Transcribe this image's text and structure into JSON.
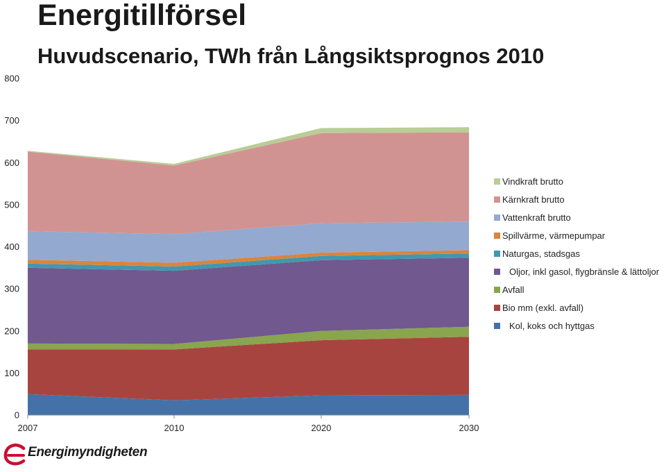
{
  "header": {
    "title": "Energitillförsel",
    "subtitle": "Huvudscenario, TWh från Långsiktsprognos 2010"
  },
  "logo": {
    "text": "Energimyndigheten"
  },
  "chart_data": {
    "type": "area",
    "stacked": true,
    "title": "Energitillförsel",
    "subtitle": "Huvudscenario, TWh från Långsiktsprognos 2010",
    "x": [
      2007,
      2010,
      2020,
      2030
    ],
    "x_labels": [
      "2007",
      "2010",
      "2020",
      "2030"
    ],
    "ylim": [
      0,
      800
    ],
    "y_ticks": [
      0,
      100,
      200,
      300,
      400,
      500,
      600,
      700,
      800
    ],
    "legend_position": "right",
    "series": [
      {
        "name": "Kol, koks och hyttgas",
        "color": "#4472a8",
        "values": [
          50,
          35,
          47,
          48
        ]
      },
      {
        "name": "Bio mm (exkl. avfall)",
        "color": "#a84440",
        "values": [
          106,
          121,
          131,
          138
        ]
      },
      {
        "name": "Avfall",
        "color": "#89a54e",
        "values": [
          14,
          13,
          22,
          24
        ]
      },
      {
        "name": "Oljor, inkl gasol, flygbränsle & lättoljor",
        "color": "#71588f",
        "values": [
          180,
          174,
          168,
          164
        ]
      },
      {
        "name": "Naturgas, stadsgas",
        "color": "#4198af",
        "values": [
          10,
          10,
          10,
          10
        ]
      },
      {
        "name": "Spillvärme, värmepumpar",
        "color": "#db843d",
        "values": [
          9,
          9,
          8,
          8
        ]
      },
      {
        "name": "Vattenkraft brutto",
        "color": "#93a9cf",
        "values": [
          68,
          68,
          70,
          68
        ]
      },
      {
        "name": "Kärnkraft brutto",
        "color": "#d19392",
        "values": [
          189,
          163,
          214,
          212
        ]
      },
      {
        "name": "Vindkraft brutto",
        "color": "#b9cd96",
        "values": [
          2,
          4,
          12,
          12
        ]
      }
    ]
  }
}
